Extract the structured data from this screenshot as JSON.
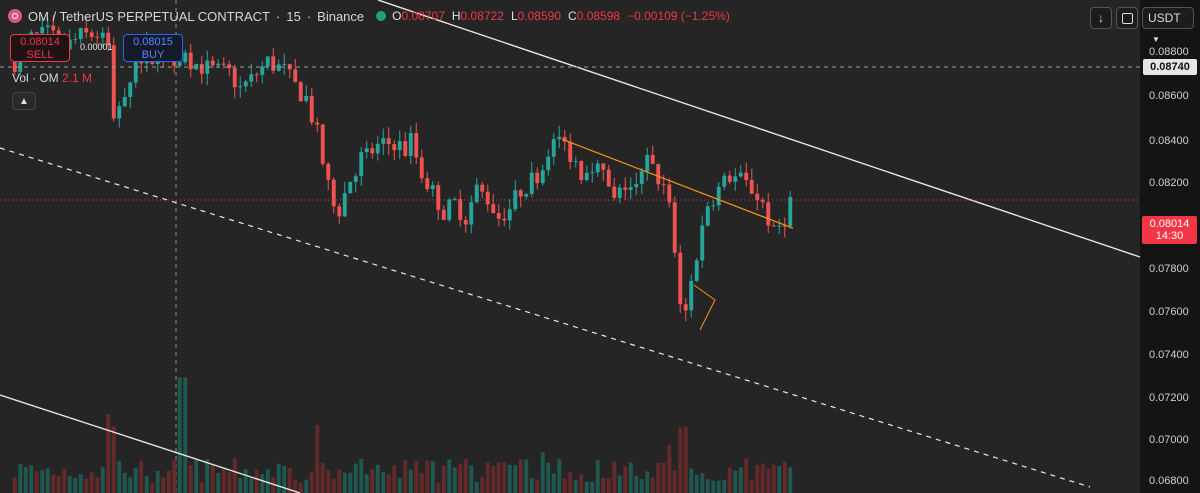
{
  "header": {
    "symbol": "OM / TetherUS PERPETUAL CONTRACT",
    "interval": "15",
    "exchange": "Binance",
    "ohlc": [
      {
        "label": "O",
        "value": "0.08707"
      },
      {
        "label": "H",
        "value": "0.08722"
      },
      {
        "label": "L",
        "value": "0.08590"
      },
      {
        "label": "C",
        "value": "0.08598"
      }
    ],
    "change": "−0.00109 (−1.25%)"
  },
  "trade": {
    "sell_price": "0.08014",
    "sell_label": "SELL",
    "spread": "0.00001",
    "buy_price": "0.08015",
    "buy_label": "BUY"
  },
  "volume_legend": {
    "label": "Vol · OM",
    "value": "2.1 M"
  },
  "toolbar": {
    "currency": "USDT"
  },
  "price_axis": {
    "ticks": [
      "0.08800",
      "0.08600",
      "0.08400",
      "0.08200",
      "0.08000",
      "0.07800",
      "0.07600",
      "0.07400",
      "0.07200",
      "0.07000",
      "0.06800"
    ],
    "crosshair_price": "0.08740",
    "last_price": "0.08014",
    "countdown": "14:30"
  },
  "colors": {
    "up": "#26a69a",
    "down": "#ef5350",
    "trendline": "#f7931a",
    "channel": "#e8e8e8",
    "price_line": "#f23645"
  },
  "chart_data": {
    "type": "candlestick",
    "ylim": [
      0.0673,
      0.0889
    ],
    "price_path": [
      [
        0,
        0.0862
      ],
      [
        3,
        0.0872
      ],
      [
        6,
        0.0874
      ],
      [
        9,
        0.0868
      ],
      [
        12,
        0.0873
      ],
      [
        15,
        0.0874
      ],
      [
        17,
        0.0868
      ],
      [
        18,
        0.0838
      ],
      [
        20,
        0.085
      ],
      [
        22,
        0.0862
      ],
      [
        24,
        0.0867
      ],
      [
        27,
        0.0862
      ],
      [
        30,
        0.0866
      ],
      [
        33,
        0.0861
      ],
      [
        36,
        0.0858
      ],
      [
        39,
        0.0857
      ],
      [
        41,
        0.085
      ],
      [
        43,
        0.0854
      ],
      [
        46,
        0.0862
      ],
      [
        49,
        0.0858
      ],
      [
        51,
        0.0851
      ],
      [
        53,
        0.0846
      ],
      [
        55,
        0.083
      ],
      [
        57,
        0.0806
      ],
      [
        59,
        0.0798
      ],
      [
        61,
        0.0811
      ],
      [
        63,
        0.082
      ],
      [
        66,
        0.0824
      ],
      [
        69,
        0.0827
      ],
      [
        71,
        0.0823
      ],
      [
        72,
        0.0828
      ],
      [
        74,
        0.0813
      ],
      [
        76,
        0.0805
      ],
      [
        78,
        0.0796
      ],
      [
        80,
        0.08
      ],
      [
        82,
        0.0794
      ],
      [
        84,
        0.0806
      ],
      [
        86,
        0.0802
      ],
      [
        88,
        0.0794
      ],
      [
        90,
        0.0798
      ],
      [
        92,
        0.0806
      ],
      [
        94,
        0.081
      ],
      [
        96,
        0.0816
      ],
      [
        97,
        0.0824
      ],
      [
        99,
        0.0828
      ],
      [
        101,
        0.0822
      ],
      [
        103,
        0.0814
      ],
      [
        105,
        0.0818
      ],
      [
        107,
        0.0812
      ],
      [
        109,
        0.08
      ],
      [
        111,
        0.0808
      ],
      [
        113,
        0.0806
      ],
      [
        115,
        0.0818
      ],
      [
        117,
        0.0811
      ],
      [
        119,
        0.0803
      ],
      [
        120,
        0.0776
      ],
      [
        121,
        0.0758
      ],
      [
        122,
        0.0752
      ],
      [
        123,
        0.0765
      ],
      [
        124,
        0.0778
      ],
      [
        126,
        0.08
      ],
      [
        128,
        0.0806
      ],
      [
        130,
        0.0812
      ],
      [
        132,
        0.081
      ],
      [
        134,
        0.0806
      ],
      [
        136,
        0.08
      ],
      [
        138,
        0.0786
      ],
      [
        140,
        0.0794
      ],
      [
        141,
        0.0801
      ]
    ],
    "lines": {
      "resistance": [
        [
          0.0828,
          100
        ],
        [
          0.0789,
          142
        ]
      ]
    }
  }
}
